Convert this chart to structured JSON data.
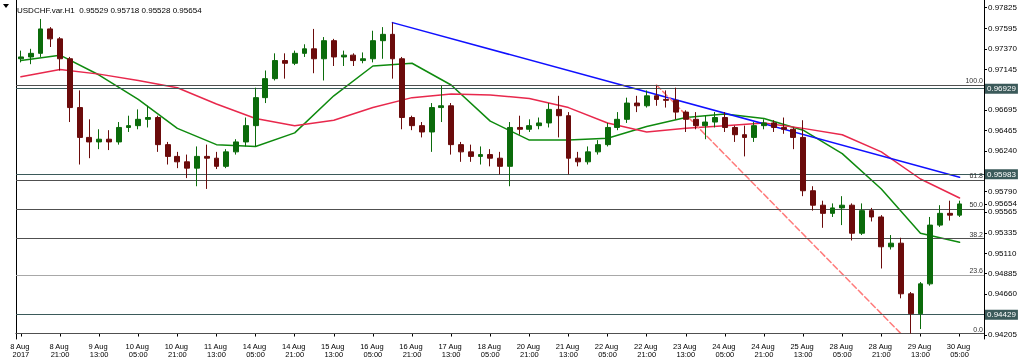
{
  "chart_data": {
    "type": "candlestick",
    "title": "USDCHF.var.H1  0.95529 0.95718 0.95528 0.95654",
    "categories": [
      "8 Aug 2017",
      null,
      null,
      null,
      "8 Aug 21:00",
      null,
      null,
      null,
      "9 Aug 13:00",
      null,
      null,
      null,
      "10 Aug 05:00",
      null,
      null,
      null,
      "10 Aug 21:00",
      null,
      null,
      null,
      "11 Aug 13:00",
      null,
      null,
      null,
      "14 Aug 05:00",
      null,
      null,
      null,
      "14 Aug 21:00",
      null,
      null,
      null,
      "15 Aug 13:00",
      null,
      null,
      null,
      "16 Aug 05:00",
      null,
      null,
      null,
      "16 Aug 21:00",
      null,
      null,
      null,
      "17 Aug 13:00",
      null,
      null,
      null,
      "18 Aug 05:00",
      null,
      null,
      null,
      "20 Aug 21:00",
      null,
      null,
      null,
      "21 Aug 13:00",
      null,
      null,
      null,
      "22 Aug 05:00",
      null,
      null,
      null,
      "22 Aug 21:00",
      null,
      null,
      null,
      "23 Aug 13:00",
      null,
      null,
      null,
      "24 Aug 05:00",
      null,
      null,
      null,
      "24 Aug 21:00",
      null,
      null,
      null,
      "25 Aug 13:00",
      null,
      null,
      null,
      "28 Aug 05:00",
      null,
      null,
      null,
      "28 Aug 21:00",
      null,
      null,
      null,
      "29 Aug 13:00",
      null,
      null,
      null,
      "30 Aug 05:00"
    ],
    "colors": [
      "#0b6b0b",
      "#0b6b0b",
      "#0b6b0b",
      "#6b0b0b",
      "#6b0b0b",
      "#6b0b0b",
      "#6b0b0b",
      "#6b0b0b",
      "#0b6b0b",
      "#6b0b0b",
      "#0b6b0b",
      "#0b6b0b",
      "#0b6b0b",
      "#0b6b0b",
      "#6b0b0b",
      "#6b0b0b",
      "#6b0b0b",
      "#6b0b0b",
      "#0b6b0b",
      "#6b0b0b",
      "#6b0b0b",
      "#0b6b0b",
      "#0b6b0b",
      "#0b6b0b",
      "#0b6b0b",
      "#0b6b0b",
      "#0b6b0b",
      "#6b0b0b",
      "#0b6b0b",
      "#0b6b0b",
      "#6b0b0b",
      "#0b6b0b",
      "#6b0b0b",
      "#0b6b0b",
      "#6b0b0b",
      "#0b6b0b",
      "#0b6b0b",
      "#0b6b0b",
      "#6b0b0b",
      "#6b0b0b",
      "#6b0b0b",
      "#6b0b0b",
      "#0b6b0b",
      "#0b6b0b",
      "#6b0b0b",
      "#6b0b0b",
      "#6b0b0b",
      "#0b6b0b",
      "#6b0b0b",
      "#6b0b0b",
      "#0b6b0b",
      "#6b0b0b",
      "#0b6b0b",
      "#0b6b0b",
      "#0b6b0b",
      "#6b0b0b",
      "#6b0b0b",
      "#6b0b0b",
      "#0b6b0b",
      "#0b6b0b",
      "#0b6b0b",
      "#0b6b0b",
      "#0b6b0b",
      "#6b0b0b",
      "#0b6b0b",
      "#6b0b0b",
      "#6b0b0b",
      "#6b0b0b",
      "#6b0b0b",
      "#6b0b0b",
      "#0b6b0b",
      "#0b6b0b",
      "#6b0b0b",
      "#6b0b0b",
      "#6b0b0b",
      "#0b6b0b",
      "#0b6b0b",
      "#6b0b0b",
      "#6b0b0b",
      "#6b0b0b",
      "#6b0b0b",
      "#6b0b0b",
      "#6b0b0b",
      "#0b6b0b",
      "#0b6b0b",
      "#6b0b0b",
      "#0b6b0b",
      "#6b0b0b",
      "#6b0b0b",
      "#0b6b0b",
      "#6b0b0b",
      "#6b0b0b",
      "#0b6b0b",
      "#0b6b0b",
      "#0b6b0b",
      "#6b0b0b",
      "#0b6b0b"
    ],
    "ohlc": [
      [
        0.9726,
        0.9735,
        0.9722,
        0.9728
      ],
      [
        0.9728,
        0.9737,
        0.972,
        0.9732
      ],
      [
        0.9732,
        0.977,
        0.9728,
        0.9759
      ],
      [
        0.9759,
        0.9761,
        0.9739,
        0.9748
      ],
      [
        0.9748,
        0.975,
        0.9713,
        0.9726
      ],
      [
        0.9726,
        0.9728,
        0.9656,
        0.9672
      ],
      [
        0.9672,
        0.9691,
        0.9609,
        0.9639
      ],
      [
        0.9639,
        0.9659,
        0.9616,
        0.9634
      ],
      [
        0.9634,
        0.9648,
        0.9626,
        0.9637
      ],
      [
        0.9637,
        0.9647,
        0.9625,
        0.9634
      ],
      [
        0.9634,
        0.9656,
        0.9631,
        0.965
      ],
      [
        0.965,
        0.9663,
        0.9645,
        0.9652
      ],
      [
        0.9652,
        0.967,
        0.9648,
        0.9659
      ],
      [
        0.9659,
        0.9674,
        0.965,
        0.9661
      ],
      [
        0.9661,
        0.9663,
        0.9623,
        0.9631
      ],
      [
        0.9631,
        0.9634,
        0.9609,
        0.9618
      ],
      [
        0.9618,
        0.9623,
        0.9605,
        0.9612
      ],
      [
        0.9612,
        0.962,
        0.9594,
        0.9605
      ],
      [
        0.9605,
        0.9629,
        0.9585,
        0.9618
      ],
      [
        0.9618,
        0.9631,
        0.9582,
        0.9616
      ],
      [
        0.9616,
        0.9623,
        0.9604,
        0.9607
      ],
      [
        0.9607,
        0.9626,
        0.9605,
        0.9623
      ],
      [
        0.9623,
        0.9637,
        0.962,
        0.9634
      ],
      [
        0.9634,
        0.9661,
        0.9629,
        0.9652
      ],
      [
        0.9652,
        0.9694,
        0.9629,
        0.9683
      ],
      [
        0.9683,
        0.9713,
        0.9677,
        0.9704
      ],
      [
        0.9704,
        0.9732,
        0.9702,
        0.9724
      ],
      [
        0.9724,
        0.9732,
        0.9704,
        0.9721
      ],
      [
        0.9721,
        0.9735,
        0.9719,
        0.9732
      ],
      [
        0.9732,
        0.9742,
        0.9728,
        0.9737
      ],
      [
        0.9737,
        0.9759,
        0.971,
        0.9726
      ],
      [
        0.9726,
        0.975,
        0.9702,
        0.9746
      ],
      [
        0.9746,
        0.9748,
        0.9718,
        0.9728
      ],
      [
        0.9728,
        0.9735,
        0.9718,
        0.973
      ],
      [
        0.973,
        0.9732,
        0.9718,
        0.9724
      ],
      [
        0.9724,
        0.9733,
        0.9721,
        0.9726
      ],
      [
        0.9726,
        0.9757,
        0.9722,
        0.9746
      ],
      [
        0.9746,
        0.9761,
        0.9726,
        0.9753
      ],
      [
        0.9753,
        0.9766,
        0.9704,
        0.9726
      ],
      [
        0.9726,
        0.9728,
        0.9648,
        0.9661
      ],
      [
        0.9661,
        0.9663,
        0.9647,
        0.9652
      ],
      [
        0.9652,
        0.9656,
        0.9639,
        0.9645
      ],
      [
        0.9645,
        0.9677,
        0.9623,
        0.9672
      ],
      [
        0.9672,
        0.9696,
        0.9656,
        0.9674
      ],
      [
        0.9674,
        0.9677,
        0.962,
        0.9631
      ],
      [
        0.9631,
        0.9634,
        0.9612,
        0.9623
      ],
      [
        0.9623,
        0.9631,
        0.9612,
        0.9618
      ],
      [
        0.9618,
        0.9629,
        0.9609,
        0.962
      ],
      [
        0.962,
        0.9626,
        0.9607,
        0.9616
      ],
      [
        0.9616,
        0.9623,
        0.9598,
        0.9607
      ],
      [
        0.9607,
        0.9656,
        0.9585,
        0.965
      ],
      [
        0.965,
        0.9663,
        0.9642,
        0.9648
      ],
      [
        0.9648,
        0.9659,
        0.9645,
        0.9652
      ],
      [
        0.9652,
        0.9661,
        0.9648,
        0.9655
      ],
      [
        0.9655,
        0.9677,
        0.965,
        0.967
      ],
      [
        0.967,
        0.9685,
        0.9639,
        0.9663
      ],
      [
        0.9663,
        0.9667,
        0.9598,
        0.9616
      ],
      [
        0.9616,
        0.9623,
        0.9607,
        0.9612
      ],
      [
        0.9612,
        0.9629,
        0.9609,
        0.9623
      ],
      [
        0.9623,
        0.9636,
        0.962,
        0.9631
      ],
      [
        0.9631,
        0.9655,
        0.9629,
        0.965
      ],
      [
        0.965,
        0.9667,
        0.9647,
        0.9659
      ],
      [
        0.9659,
        0.9683,
        0.9655,
        0.9677
      ],
      [
        0.9677,
        0.9685,
        0.9667,
        0.9674
      ],
      [
        0.9674,
        0.9691,
        0.9672,
        0.9685
      ],
      [
        0.9685,
        0.9696,
        0.9674,
        0.9681
      ],
      [
        0.9681,
        0.9691,
        0.9672,
        0.968
      ],
      [
        0.968,
        0.9694,
        0.9659,
        0.9667
      ],
      [
        0.9667,
        0.9669,
        0.9645,
        0.9659
      ],
      [
        0.9659,
        0.9667,
        0.9648,
        0.9652
      ],
      [
        0.9652,
        0.9663,
        0.9637,
        0.9656
      ],
      [
        0.9656,
        0.9667,
        0.965,
        0.9661
      ],
      [
        0.9661,
        0.9667,
        0.9645,
        0.965
      ],
      [
        0.965,
        0.9652,
        0.9634,
        0.9642
      ],
      [
        0.9642,
        0.9652,
        0.9618,
        0.9639
      ],
      [
        0.9639,
        0.9656,
        0.9634,
        0.9652
      ],
      [
        0.9652,
        0.9659,
        0.9648,
        0.9655
      ],
      [
        0.9655,
        0.9658,
        0.9645,
        0.965
      ],
      [
        0.965,
        0.9661,
        0.9643,
        0.9648
      ],
      [
        0.9648,
        0.965,
        0.9626,
        0.9639
      ],
      [
        0.9639,
        0.9658,
        0.9574,
        0.958
      ],
      [
        0.958,
        0.9585,
        0.9558,
        0.9564
      ],
      [
        0.9564,
        0.9569,
        0.9539,
        0.9555
      ],
      [
        0.9555,
        0.9566,
        0.9551,
        0.9561
      ],
      [
        0.9561,
        0.9574,
        0.9542,
        0.9564
      ],
      [
        0.9564,
        0.9566,
        0.9525,
        0.9533
      ],
      [
        0.9533,
        0.9566,
        0.9531,
        0.9558
      ],
      [
        0.9558,
        0.9561,
        0.9546,
        0.9551
      ],
      [
        0.9551,
        0.9553,
        0.9494,
        0.9518
      ],
      [
        0.9518,
        0.9531,
        0.9515,
        0.9522
      ],
      [
        0.9522,
        0.9528,
        0.9461,
        0.9466
      ],
      [
        0.9466,
        0.9468,
        0.9422,
        0.9444
      ],
      [
        0.9444,
        0.9479,
        0.9427,
        0.9477
      ],
      [
        0.9477,
        0.9551,
        0.9475,
        0.9542
      ],
      [
        0.9542,
        0.9564,
        0.954,
        0.9555
      ],
      [
        0.9555,
        0.9569,
        0.9547,
        0.9553
      ],
      [
        0.9553,
        0.9569,
        0.9551,
        0.95654
      ]
    ],
    "series": [
      {
        "type": "line",
        "color": "#0e8a0e",
        "values": [
          0.9724,
          null,
          null,
          null,
          0.973,
          null,
          null,
          null,
          0.9708,
          null,
          null,
          null,
          0.9681,
          null,
          null,
          null,
          0.9649,
          null,
          null,
          null,
          0.9631,
          null,
          null,
          null,
          0.9629,
          null,
          null,
          null,
          0.9644,
          null,
          null,
          null,
          0.9685,
          null,
          null,
          null,
          0.9718,
          null,
          null,
          null,
          0.9721,
          null,
          null,
          null,
          0.9697,
          null,
          null,
          null,
          0.9657,
          null,
          null,
          null,
          0.9636,
          null,
          null,
          null,
          0.9636,
          null,
          null,
          null,
          0.9638,
          null,
          null,
          null,
          0.9651,
          null,
          null,
          null,
          0.9661,
          null,
          null,
          null,
          0.9665,
          null,
          null,
          null,
          0.966,
          null,
          null,
          null,
          0.9647,
          null,
          null,
          null,
          0.9621,
          null,
          null,
          null,
          0.9582,
          null,
          null,
          null,
          0.9533,
          null,
          null,
          null,
          0.9523
        ]
      },
      {
        "type": "line",
        "color": "#e8284c",
        "values": [
          0.9706,
          null,
          null,
          null,
          0.9714,
          null,
          null,
          null,
          0.9709,
          null,
          null,
          null,
          0.9702,
          null,
          null,
          null,
          0.9694,
          null,
          null,
          null,
          0.9676,
          null,
          null,
          null,
          0.966,
          null,
          null,
          null,
          0.9652,
          null,
          null,
          null,
          0.9658,
          null,
          null,
          null,
          0.9672,
          null,
          null,
          null,
          0.9683,
          null,
          null,
          null,
          0.9687,
          null,
          null,
          null,
          0.9686,
          null,
          null,
          null,
          0.9682,
          null,
          null,
          null,
          0.9672,
          null,
          null,
          null,
          0.9655,
          null,
          null,
          null,
          0.9645,
          null,
          null,
          null,
          0.9649,
          null,
          null,
          null,
          0.9652,
          null,
          null,
          null,
          0.9655,
          null,
          null,
          null,
          0.9649,
          null,
          null,
          null,
          0.9642,
          null,
          null,
          null,
          0.9623,
          null,
          null,
          null,
          0.9593,
          null,
          null,
          null,
          0.9572
        ]
      },
      {
        "type": "line",
        "color": "#1010ff",
        "values": [
          null,
          null,
          null,
          null,
          null,
          null,
          null,
          null,
          null,
          null,
          null,
          null,
          null,
          null,
          null,
          null,
          null,
          null,
          null,
          null,
          null,
          null,
          null,
          null,
          null,
          null,
          null,
          null,
          null,
          null,
          null,
          null,
          null,
          null,
          null,
          null,
          null,
          null,
          0.9766,
          null,
          null,
          null,
          null,
          null,
          null,
          null,
          null,
          null,
          null,
          null,
          null,
          null,
          null,
          null,
          null,
          null,
          null,
          null,
          null,
          null,
          null,
          null,
          null,
          null,
          null,
          null,
          null,
          null,
          null,
          null,
          null,
          null,
          null,
          null,
          null,
          null,
          null,
          null,
          null,
          null,
          null,
          null,
          null,
          null,
          null,
          null,
          null,
          null,
          null,
          null,
          null,
          null,
          null,
          null,
          null,
          null,
          0.9595
        ]
      },
      {
        "type": "line",
        "color": "#ff7a7a",
        "line_style": "dashed",
        "values": [
          null,
          null,
          null,
          null,
          null,
          null,
          null,
          null,
          null,
          null,
          null,
          null,
          null,
          null,
          null,
          null,
          null,
          null,
          null,
          null,
          null,
          null,
          null,
          null,
          null,
          null,
          null,
          null,
          null,
          null,
          null,
          null,
          null,
          null,
          null,
          null,
          null,
          null,
          null,
          null,
          null,
          null,
          null,
          null,
          null,
          null,
          null,
          null,
          null,
          null,
          null,
          null,
          null,
          null,
          null,
          null,
          null,
          null,
          null,
          null,
          null,
          null,
          null,
          null,
          null,
          0.9697,
          null,
          null,
          null,
          null,
          null,
          null,
          null,
          null,
          null,
          null,
          null,
          null,
          null,
          null,
          null,
          null,
          null,
          null,
          null,
          null,
          null,
          null,
          null,
          null,
          0.9422,
          null,
          null,
          null,
          null,
          null,
          null
        ]
      }
    ],
    "ylim": [
      0.9416,
      0.9791
    ],
    "yticks": [
      0.94205,
      {
        "value": 0.9466,
        "label": "0.94660"
      },
      0.94885,
      {
        "value": 0.9511,
        "label": "0.95110"
      },
      0.95335,
      0.95565,
      0.95654,
      {
        "value": 0.9579,
        "label": "0.95790"
      },
      {
        "value": 0.9624,
        "label": "0.96240"
      },
      0.96465,
      0.96695,
      0.97145,
      {
        "value": 0.9737,
        "label": "0.97370"
      },
      0.97595,
      0.97825
    ],
    "ref_lines": [
      {
        "axis": "y",
        "value": 0.96929,
        "label": "0.96929",
        "color": "#3b5a5a"
      },
      {
        "axis": "y",
        "value": 0.95983,
        "label": "0.95983",
        "color": "#3b5a5a"
      },
      {
        "axis": "y",
        "value": 0.94429,
        "label": "0.94429",
        "color": "#3b5a5a"
      },
      {
        "axis": "y2",
        "value": 100.0,
        "label": "100.0",
        "color": "#505050"
      },
      {
        "axis": "y2",
        "value": 61.8,
        "label": "61.8",
        "color": "#505050"
      },
      {
        "axis": "y2",
        "value": 50.0,
        "label": "50.0",
        "color": "#505050"
      },
      {
        "axis": "y2",
        "value": 38.2,
        "label": "38.2",
        "color": "#505050"
      },
      {
        "axis": "y2",
        "value": 23.6,
        "label": "23.6",
        "color": "#a8a8a8"
      },
      {
        "axis": "y2",
        "value": 0.0,
        "label": "0.0",
        "color": "#505050"
      }
    ],
    "y2lim": [
      -2.2,
      134.2
    ],
    "grid": false
  }
}
